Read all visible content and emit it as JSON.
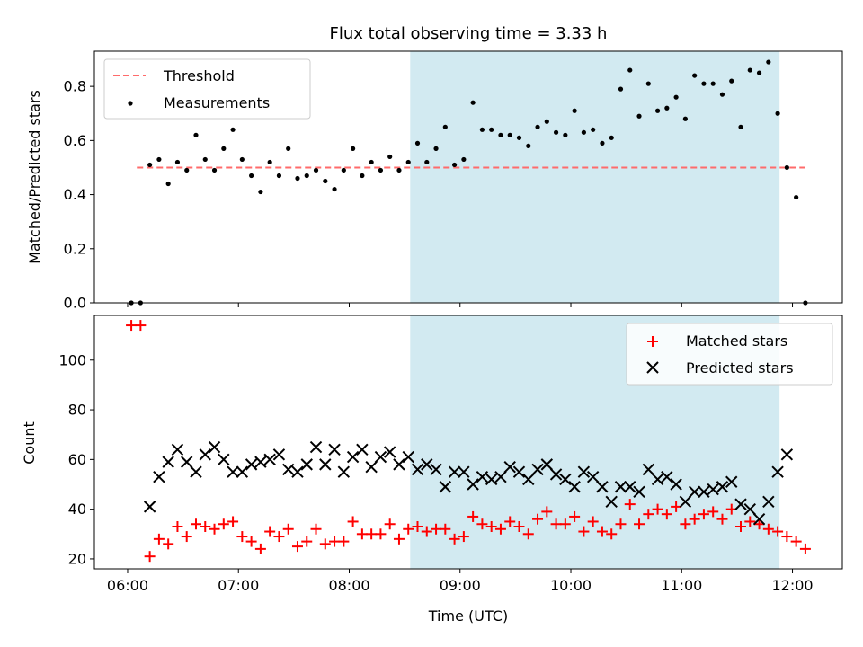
{
  "title": "Flux total observing time = 3.33 h",
  "colors": {
    "highlight": "#add8e6",
    "threshold": "#ff6b6b",
    "measurement": "#000000",
    "matched": "#ff0000",
    "predicted": "#000000"
  },
  "chart_data": [
    {
      "type": "scatter",
      "ylabel": "Matched/Predicted stars",
      "xlabel": "",
      "ylim": [
        0,
        0.93
      ],
      "xlim": [
        "05:42",
        "12:27"
      ],
      "yticks": [
        "0.0",
        "0.2",
        "0.4",
        "0.6",
        "0.8"
      ],
      "ytick_values": [
        0,
        0.2,
        0.4,
        0.6,
        0.8
      ],
      "highlight_span": [
        "08:33",
        "11:53"
      ],
      "legend": {
        "position": "top-left",
        "entries": [
          "Threshold",
          "Measurements"
        ]
      },
      "threshold": {
        "name": "Threshold",
        "y": 0.5,
        "x": [
          "06:05",
          "12:07"
        ]
      },
      "series": [
        {
          "name": "Measurements",
          "x": [
            "06:02",
            "06:07",
            "06:12",
            "06:17",
            "06:22",
            "06:27",
            "06:32",
            "06:37",
            "06:42",
            "06:47",
            "06:52",
            "06:57",
            "07:02",
            "07:07",
            "07:12",
            "07:17",
            "07:22",
            "07:27",
            "07:32",
            "07:37",
            "07:42",
            "07:47",
            "07:52",
            "07:57",
            "08:02",
            "08:07",
            "08:12",
            "08:17",
            "08:22",
            "08:27",
            "08:32",
            "08:37",
            "08:42",
            "08:47",
            "08:52",
            "08:57",
            "09:02",
            "09:07",
            "09:12",
            "09:17",
            "09:22",
            "09:27",
            "09:32",
            "09:37",
            "09:42",
            "09:47",
            "09:52",
            "09:57",
            "10:02",
            "10:07",
            "10:12",
            "10:17",
            "10:22",
            "10:27",
            "10:32",
            "10:37",
            "10:42",
            "10:47",
            "10:52",
            "10:57",
            "11:02",
            "11:07",
            "11:12",
            "11:17",
            "11:22",
            "11:27",
            "11:32",
            "11:37",
            "11:42",
            "11:47",
            "11:52",
            "11:57",
            "12:02",
            "12:07"
          ],
          "y": [
            0.0,
            0.0,
            0.51,
            0.53,
            0.44,
            0.52,
            0.49,
            0.62,
            0.53,
            0.49,
            0.57,
            0.64,
            0.53,
            0.47,
            0.41,
            0.52,
            0.47,
            0.57,
            0.46,
            0.47,
            0.49,
            0.45,
            0.42,
            0.49,
            0.57,
            0.47,
            0.52,
            0.49,
            0.54,
            0.49,
            0.52,
            0.59,
            0.52,
            0.57,
            0.65,
            0.51,
            0.53,
            0.74,
            0.64,
            0.64,
            0.62,
            0.62,
            0.61,
            0.58,
            0.65,
            0.67,
            0.63,
            0.62,
            0.71,
            0.63,
            0.64,
            0.59,
            0.61,
            0.79,
            0.86,
            0.69,
            0.81,
            0.71,
            0.72,
            0.76,
            0.68,
            0.84,
            0.81,
            0.81,
            0.77,
            0.82,
            0.65,
            0.86,
            0.85,
            0.89,
            0.7,
            0.5,
            0.39,
            0.0
          ]
        }
      ]
    },
    {
      "type": "scatter",
      "ylabel": "Count",
      "xlabel": "Time (UTC)",
      "ylim": [
        16,
        118
      ],
      "xlim": [
        "05:42",
        "12:27"
      ],
      "yticks": [
        "20",
        "40",
        "60",
        "80",
        "100"
      ],
      "ytick_values": [
        20,
        40,
        60,
        80,
        100
      ],
      "xticks": [
        "06:00",
        "07:00",
        "08:00",
        "09:00",
        "10:00",
        "11:00",
        "12:00"
      ],
      "highlight_span": [
        "08:33",
        "11:53"
      ],
      "legend": {
        "position": "top-right",
        "entries": [
          "Matched stars",
          "Predicted stars"
        ]
      },
      "series": [
        {
          "name": "Matched stars",
          "marker": "plus",
          "x": [
            "06:02",
            "06:07",
            "06:12",
            "06:17",
            "06:22",
            "06:27",
            "06:32",
            "06:37",
            "06:42",
            "06:47",
            "06:52",
            "06:57",
            "07:02",
            "07:07",
            "07:12",
            "07:17",
            "07:22",
            "07:27",
            "07:32",
            "07:37",
            "07:42",
            "07:47",
            "07:52",
            "07:57",
            "08:02",
            "08:07",
            "08:12",
            "08:17",
            "08:22",
            "08:27",
            "08:32",
            "08:37",
            "08:42",
            "08:47",
            "08:52",
            "08:57",
            "09:02",
            "09:07",
            "09:12",
            "09:17",
            "09:22",
            "09:27",
            "09:32",
            "09:37",
            "09:42",
            "09:47",
            "09:52",
            "09:57",
            "10:02",
            "10:07",
            "10:12",
            "10:17",
            "10:22",
            "10:27",
            "10:32",
            "10:37",
            "10:42",
            "10:47",
            "10:52",
            "10:57",
            "11:02",
            "11:07",
            "11:12",
            "11:17",
            "11:22",
            "11:27",
            "11:32",
            "11:37",
            "11:42",
            "11:47",
            "11:52",
            "11:57",
            "12:02",
            "12:07"
          ],
          "y": [
            114,
            114,
            21,
            28,
            26,
            33,
            29,
            34,
            33,
            32,
            34,
            35,
            29,
            27,
            24,
            31,
            29,
            32,
            25,
            27,
            32,
            26,
            27,
            27,
            35,
            30,
            30,
            30,
            34,
            28,
            32,
            33,
            31,
            32,
            32,
            28,
            29,
            37,
            34,
            33,
            32,
            35,
            33,
            30,
            36,
            39,
            34,
            34,
            37,
            31,
            35,
            31,
            30,
            34,
            42,
            34,
            38,
            40,
            38,
            41,
            34,
            36,
            38,
            39,
            36,
            40,
            33,
            35,
            34,
            32,
            31,
            29,
            27,
            24
          ]
        },
        {
          "name": "Predicted stars",
          "marker": "x",
          "x": [
            "06:12",
            "06:17",
            "06:22",
            "06:27",
            "06:32",
            "06:37",
            "06:42",
            "06:47",
            "06:52",
            "06:57",
            "07:02",
            "07:07",
            "07:12",
            "07:17",
            "07:22",
            "07:27",
            "07:32",
            "07:37",
            "07:42",
            "07:47",
            "07:52",
            "07:57",
            "08:02",
            "08:07",
            "08:12",
            "08:17",
            "08:22",
            "08:27",
            "08:32",
            "08:37",
            "08:42",
            "08:47",
            "08:52",
            "08:57",
            "09:02",
            "09:07",
            "09:12",
            "09:17",
            "09:22",
            "09:27",
            "09:32",
            "09:37",
            "09:42",
            "09:47",
            "09:52",
            "09:57",
            "10:02",
            "10:07",
            "10:12",
            "10:17",
            "10:22",
            "10:27",
            "10:32",
            "10:37",
            "10:42",
            "10:47",
            "10:52",
            "10:57",
            "11:02",
            "11:07",
            "11:12",
            "11:17",
            "11:22",
            "11:27",
            "11:32",
            "11:37",
            "11:42",
            "11:47",
            "11:52",
            "11:57",
            "12:02",
            "12:07"
          ],
          "y": [
            41,
            53,
            59,
            64,
            59,
            55,
            62,
            65,
            60,
            55,
            55,
            58,
            59,
            60,
            62,
            56,
            55,
            58,
            65,
            58,
            64,
            55,
            61,
            64,
            57,
            61,
            63,
            58,
            61,
            56,
            58,
            56,
            49,
            55,
            55,
            50,
            53,
            52,
            53,
            57,
            55,
            52,
            56,
            58,
            54,
            52,
            49,
            55,
            53,
            49,
            43,
            49,
            49,
            47,
            56,
            52,
            53,
            50,
            43,
            47,
            47,
            48,
            49,
            51,
            42,
            40,
            36,
            43,
            55,
            62,
            null,
            null
          ]
        }
      ]
    }
  ]
}
